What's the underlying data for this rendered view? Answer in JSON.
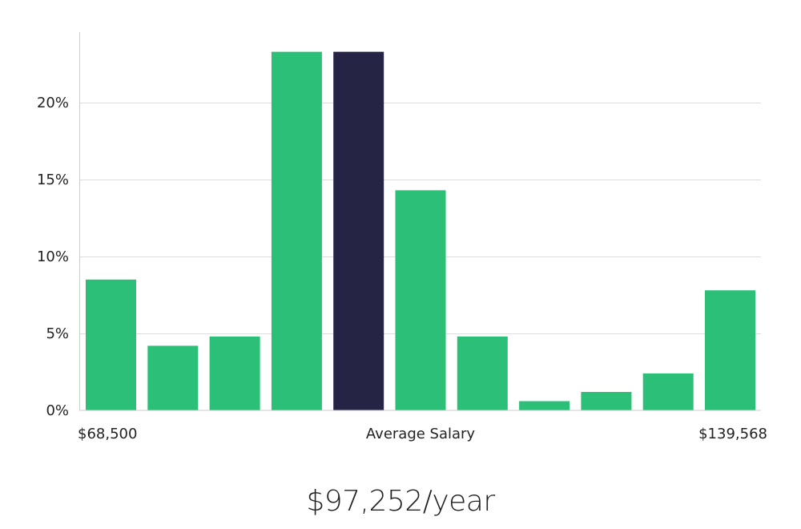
{
  "chart_data": {
    "type": "bar",
    "ylim": [
      0,
      25
    ],
    "yticks": [
      "0%",
      "5%",
      "10%",
      "15%",
      "20%"
    ],
    "ytick_values": [
      0,
      5,
      10,
      15,
      20
    ],
    "grid": true,
    "values": [
      8.5,
      4.2,
      4.8,
      23.3,
      23.3,
      14.3,
      4.8,
      0.6,
      1.2,
      2.4,
      7.8
    ],
    "highlight_index": 4,
    "x_labels": {
      "min": "$68,500",
      "center": "Average Salary",
      "max": "$139,568"
    },
    "colors": {
      "bar": "#2cbf78",
      "highlight": "#262445",
      "grid": "#dddddd",
      "axis": "#cccccc",
      "text": "#222222"
    }
  },
  "salary_display": "$97,252/year"
}
